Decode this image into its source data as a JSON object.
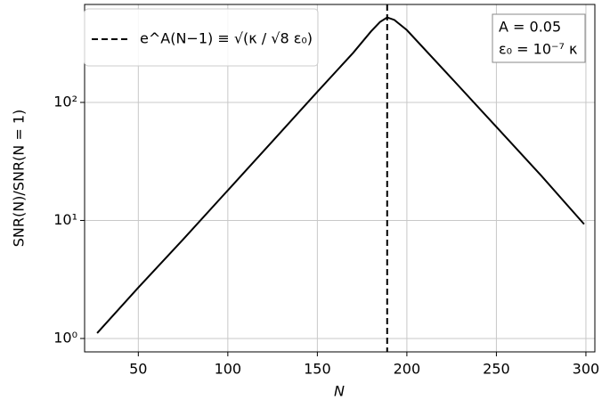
{
  "chart_data": {
    "type": "line",
    "xlabel": "N",
    "ylabel": "SNR(N)/SNR(N = 1)",
    "x": [
      27,
      50,
      75,
      100,
      125,
      150,
      170,
      180,
      185,
      189,
      193,
      200,
      225,
      250,
      275,
      299
    ],
    "series": [
      {
        "color": "#000000",
        "values": [
          1.11,
          2.7,
          6.9,
          18,
          47,
          123,
          263,
          400,
          480,
          525,
          500,
          410,
          160,
          62,
          24,
          9.3
        ]
      }
    ],
    "vlines": [
      {
        "x": 189,
        "name": "e^A(N−1) ≡ √(κ / √8 ε₀)",
        "color": "#000000",
        "style": "dashed"
      }
    ],
    "annotations": [
      "A = 0.05",
      "ε₀ = 10⁻⁷ κ"
    ],
    "xlim": [
      20,
      305
    ],
    "xticks": [
      50,
      100,
      150,
      200,
      250,
      300
    ],
    "ylim": [
      0.77,
      676
    ],
    "log_y": true,
    "yticks": [
      {
        "value": 1,
        "label": "10⁰"
      },
      {
        "value": 10,
        "label": "10¹"
      },
      {
        "value": 100,
        "label": "10²"
      }
    ],
    "grid": true,
    "legend": "upper left"
  }
}
